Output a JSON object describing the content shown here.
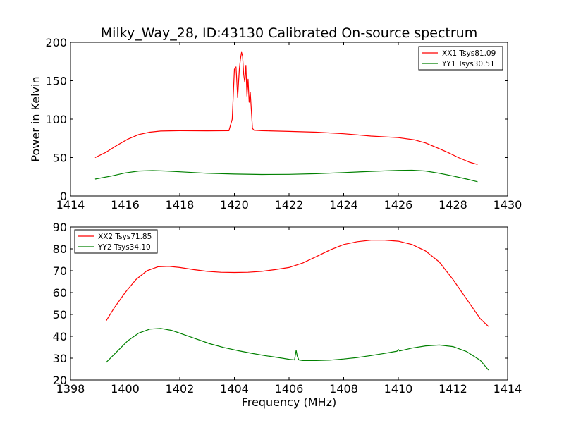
{
  "title": "Milky_Way_28, ID:43130 Calibrated On-source spectrum",
  "colors": {
    "red": "#ff0000",
    "green": "#008000"
  },
  "chart_data": [
    {
      "type": "line",
      "ylabel": "Power in Kelvin",
      "xlabel": "",
      "xlim": [
        1414,
        1430
      ],
      "ylim": [
        0,
        200
      ],
      "xticks": [
        1414,
        1416,
        1418,
        1420,
        1422,
        1424,
        1426,
        1428,
        1430
      ],
      "yticks": [
        0,
        50,
        100,
        150,
        200
      ],
      "legend_position": "top-right",
      "grid": false,
      "series": [
        {
          "name": "XX1 Tsys81.09",
          "color": "#ff0000",
          "x": [
            1414.9,
            1415.3,
            1415.7,
            1416.1,
            1416.5,
            1416.9,
            1417.3,
            1418.0,
            1419.0,
            1419.8,
            1419.92,
            1420.0,
            1420.06,
            1420.12,
            1420.18,
            1420.22,
            1420.26,
            1420.3,
            1420.34,
            1420.38,
            1420.42,
            1420.46,
            1420.5,
            1420.54,
            1420.58,
            1420.62,
            1420.66,
            1420.72,
            1421.0,
            1422.0,
            1423.0,
            1424.0,
            1425.0,
            1426.0,
            1426.6,
            1427.0,
            1427.4,
            1427.8,
            1428.2,
            1428.6,
            1428.9
          ],
          "y": [
            50,
            57,
            66,
            74,
            80,
            83,
            84.5,
            85,
            84.8,
            85,
            100,
            165,
            168,
            128,
            165,
            178,
            187,
            182,
            158,
            148,
            170,
            130,
            152,
            122,
            135,
            112,
            88,
            85.5,
            85,
            84,
            83,
            81,
            78,
            76,
            73,
            69,
            63,
            57,
            50,
            44,
            41
          ]
        },
        {
          "name": "YY1 Tsys30.51",
          "color": "#008000",
          "x": [
            1414.9,
            1415.5,
            1416.0,
            1416.5,
            1417.0,
            1417.5,
            1418.0,
            1419.0,
            1420.0,
            1421.0,
            1422.0,
            1423.0,
            1424.0,
            1425.0,
            1426.0,
            1426.5,
            1427.0,
            1427.5,
            1428.0,
            1428.5,
            1428.9
          ],
          "y": [
            22,
            26,
            30,
            32.5,
            33,
            32.5,
            31.5,
            29.5,
            28.5,
            28,
            28.2,
            29,
            30.5,
            32,
            33.3,
            33.5,
            32.5,
            29.5,
            26,
            22,
            18.5
          ]
        }
      ]
    },
    {
      "type": "line",
      "ylabel": "",
      "xlabel": "Frequency (MHz)",
      "xlim": [
        1398,
        1414
      ],
      "ylim": [
        20,
        90
      ],
      "xticks": [
        1398,
        1400,
        1402,
        1404,
        1406,
        1408,
        1410,
        1412,
        1414
      ],
      "yticks": [
        20,
        30,
        40,
        50,
        60,
        70,
        80,
        90
      ],
      "legend_position": "top-left",
      "grid": false,
      "series": [
        {
          "name": "XX2 Tsys71.85",
          "color": "#ff0000",
          "x": [
            1399.3,
            1399.6,
            1400.0,
            1400.4,
            1400.8,
            1401.2,
            1401.6,
            1402.0,
            1402.5,
            1403.0,
            1403.5,
            1404.0,
            1404.5,
            1405.0,
            1405.5,
            1406.0,
            1406.5,
            1407.0,
            1407.5,
            1408.0,
            1408.5,
            1409.0,
            1409.5,
            1410.0,
            1410.5,
            1411.0,
            1411.5,
            1412.0,
            1412.5,
            1413.0,
            1413.3
          ],
          "y": [
            47,
            53,
            60,
            66,
            70,
            71.8,
            72,
            71.5,
            70.5,
            69.7,
            69.3,
            69.2,
            69.3,
            69.7,
            70.5,
            71.5,
            73.5,
            76.5,
            79.5,
            82,
            83.3,
            84,
            84,
            83.5,
            82,
            79,
            74,
            66,
            57,
            48,
            44.5
          ]
        },
        {
          "name": "YY2 Tsys34.10",
          "color": "#008000",
          "x": [
            1399.3,
            1399.7,
            1400.1,
            1400.5,
            1400.9,
            1401.3,
            1401.7,
            1402.1,
            1402.6,
            1403.1,
            1403.6,
            1404.1,
            1404.6,
            1405.1,
            1405.6,
            1406.0,
            1406.2,
            1406.26,
            1406.3,
            1406.36,
            1406.5,
            1407.0,
            1407.5,
            1408.0,
            1408.5,
            1409.0,
            1409.5,
            1409.95,
            1410.0,
            1410.05,
            1410.5,
            1411.0,
            1411.5,
            1412.0,
            1412.5,
            1413.0,
            1413.3
          ],
          "y": [
            28,
            33,
            38,
            41.5,
            43.3,
            43.6,
            42.7,
            41,
            38.8,
            36.6,
            34.9,
            33.5,
            32.3,
            31.2,
            30.3,
            29.5,
            29.2,
            33.6,
            31,
            29.2,
            28.9,
            28.9,
            29.1,
            29.6,
            30.3,
            31.2,
            32.2,
            33.2,
            34,
            33.3,
            34.6,
            35.6,
            36,
            35.3,
            33,
            29,
            24.5
          ]
        }
      ]
    }
  ]
}
